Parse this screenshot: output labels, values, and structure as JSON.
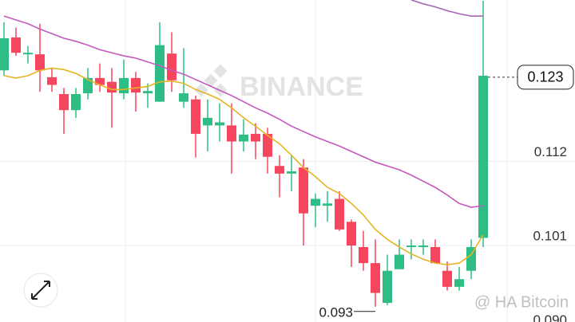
{
  "chart_data": {
    "type": "candlestick",
    "watermark": "BINANCE",
    "credit": "@ HA Bitcoin",
    "up_color": "#2ebd85",
    "down_color": "#f6465d",
    "ylim": [
      0.091,
      0.1331
    ],
    "yticks": [
      {
        "value": 0.09,
        "label": "0.090"
      },
      0.101,
      0.112
    ],
    "grid": true,
    "last_price": 0.123,
    "low_label": 0.093,
    "open": [
      0.1239,
      0.1282,
      0.126,
      0.126,
      0.123,
      0.1208,
      0.1187,
      0.1209,
      0.1229,
      0.1224,
      0.1209,
      0.1229,
      0.1209,
      0.1198,
      0.1261,
      0.1198,
      0.1201,
      0.1167,
      0.1167,
      0.1167,
      0.1146,
      0.1156,
      0.1156,
      0.1114,
      0.1104,
      0.1112,
      0.1062,
      0.1062,
      0.1071,
      0.1041,
      0.1008,
      0.0987,
      0.0935,
      0.0979,
      0.1008,
      0.1008,
      0.1008,
      0.0977,
      0.0956,
      0.0977,
      0.102
    ],
    "high": [
      0.1302,
      0.1295,
      0.1271,
      0.13,
      0.1242,
      0.1216,
      0.1216,
      0.1242,
      0.1248,
      0.1242,
      0.1253,
      0.1237,
      0.1222,
      0.1302,
      0.1289,
      0.1268,
      0.1206,
      0.1201,
      0.1196,
      0.1196,
      0.1175,
      0.117,
      0.1164,
      0.1128,
      0.1128,
      0.1123,
      0.1078,
      0.1081,
      0.1081,
      0.1044,
      0.1029,
      0.1018,
      0.0998,
      0.1018,
      0.1018,
      0.1018,
      0.1018,
      0.0989,
      0.0982,
      0.1018,
      0.133
    ],
    "low": [
      0.1232,
      0.1258,
      0.1248,
      0.1211,
      0.1211,
      0.1156,
      0.1177,
      0.1201,
      0.1211,
      0.1164,
      0.1201,
      0.1185,
      0.119,
      0.1198,
      0.1211,
      0.119,
      0.1125,
      0.1133,
      0.1146,
      0.1104,
      0.1133,
      0.1123,
      0.1104,
      0.1073,
      0.1081,
      0.101,
      0.1034,
      0.1041,
      0.1029,
      0.0982,
      0.0977,
      0.093,
      0.0932,
      0.0979,
      0.0992,
      0.0998,
      0.0987,
      0.0951,
      0.0951,
      0.0966,
      0.1008
    ],
    "close": [
      0.1281,
      0.1262,
      0.1262,
      0.1239,
      0.122,
      0.1187,
      0.1208,
      0.1229,
      0.122,
      0.121,
      0.1229,
      0.121,
      0.1212,
      0.1272,
      0.1226,
      0.1209,
      0.1156,
      0.1177,
      0.1171,
      0.1146,
      0.1155,
      0.1146,
      0.1126,
      0.1104,
      0.1107,
      0.1052,
      0.1071,
      0.1065,
      0.1031,
      0.101,
      0.0987,
      0.0948,
      0.0977,
      0.0998,
      0.101,
      0.101,
      0.0987,
      0.0956,
      0.0966,
      0.1008,
      0.1232
    ],
    "series": [
      {
        "color": "#e6b422",
        "values": [
          0.1232,
          0.1229,
          0.1232,
          0.1239,
          0.1242,
          0.124,
          0.1235,
          0.1227,
          0.122,
          0.1214,
          0.1214,
          0.1216,
          0.1218,
          0.1224,
          0.1225,
          0.1222,
          0.1214,
          0.1208,
          0.1201,
          0.119,
          0.1177,
          0.1166,
          0.1154,
          0.1143,
          0.1128,
          0.1112,
          0.11,
          0.1086,
          0.1078,
          0.1065,
          0.105,
          0.1031,
          0.1018,
          0.1008,
          0.0999,
          0.0992,
          0.0987,
          0.0985,
          0.0987,
          0.0998,
          0.1024
        ]
      },
      {
        "color": "#c459c0",
        "values": [
          0.131,
          0.1305,
          0.13,
          0.1293,
          0.1287,
          0.1281,
          0.1277,
          0.1272,
          0.1266,
          0.1262,
          0.1258,
          0.1255,
          0.125,
          0.1245,
          0.1239,
          0.1234,
          0.1227,
          0.122,
          0.1213,
          0.1206,
          0.1198,
          0.119,
          0.1183,
          0.1175,
          0.1166,
          0.1159,
          0.1152,
          0.1146,
          0.114,
          0.1133,
          0.1126,
          0.1119,
          0.1114,
          0.1109,
          0.1102,
          0.1094,
          0.1086,
          0.1076,
          0.1065,
          0.106,
          0.1062
        ]
      },
      {
        "color": "#a866b8",
        "values": [
          null,
          null,
          null,
          null,
          null,
          null,
          null,
          null,
          null,
          null,
          null,
          null,
          null,
          null,
          null,
          null,
          null,
          null,
          null,
          null,
          null,
          null,
          null,
          null,
          null,
          null,
          null,
          null,
          null,
          null,
          null,
          null,
          null,
          null,
          0.1331,
          0.1326,
          0.1322,
          0.1317,
          0.1313,
          0.131,
          0.131
        ]
      }
    ]
  }
}
